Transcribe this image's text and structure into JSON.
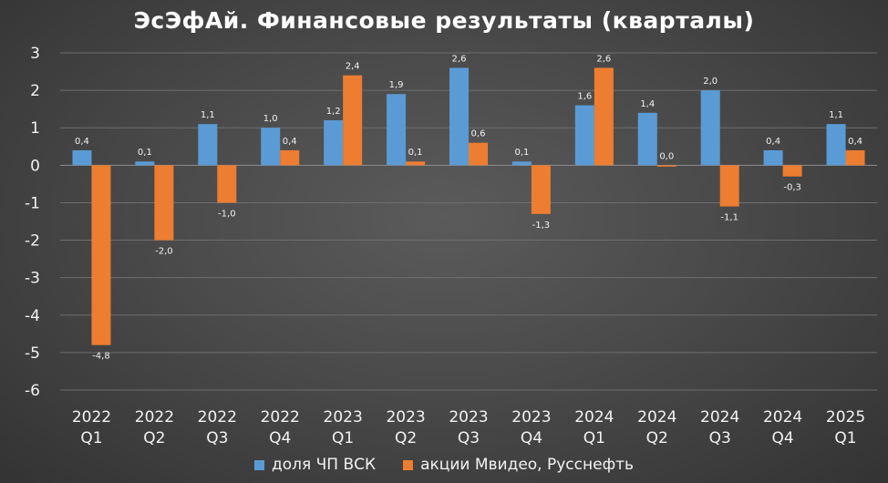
{
  "chart_data": {
    "type": "bar",
    "title": "ЭсЭфАй. Финансовые результаты (кварталы)",
    "xlabel": "",
    "ylabel": "",
    "ylim": [
      -6,
      3
    ],
    "yticks": [
      "3",
      "2",
      "1",
      "0",
      "-1",
      "-2",
      "-3",
      "-4",
      "-5",
      "-6"
    ],
    "ytick_values": [
      3,
      2,
      1,
      0,
      -1,
      -2,
      -3,
      -4,
      -5,
      -6
    ],
    "grid": true,
    "legend_position": "bottom",
    "categories": [
      [
        "2022",
        "Q1"
      ],
      [
        "2022",
        "Q2"
      ],
      [
        "2022",
        "Q3"
      ],
      [
        "2022",
        "Q4"
      ],
      [
        "2023",
        "Q1"
      ],
      [
        "2023",
        "Q2"
      ],
      [
        "2023",
        "Q3"
      ],
      [
        "2023",
        "Q4"
      ],
      [
        "2024",
        "Q1"
      ],
      [
        "2024",
        "Q2"
      ],
      [
        "2024",
        "Q3"
      ],
      [
        "2024",
        "Q4"
      ],
      [
        "2025",
        "Q1"
      ]
    ],
    "series": [
      {
        "name": "доля ЧП ВСК",
        "color": "#5b9bd5",
        "values": [
          0.4,
          0.1,
          1.1,
          1.0,
          1.2,
          1.9,
          2.6,
          0.1,
          1.6,
          1.4,
          2.0,
          0.4,
          1.1
        ],
        "labels": [
          "0,4",
          "0,1",
          "1,1",
          "1,0",
          "1,2",
          "1,9",
          "2,6",
          "0,1",
          "1,6",
          "1,4",
          "2,0",
          "0,4",
          "1,1"
        ]
      },
      {
        "name": "акции Мвидео, Русснефть",
        "color": "#ed7d31",
        "values": [
          -4.8,
          -2.0,
          -1.0,
          0.4,
          2.4,
          0.1,
          0.6,
          -1.3,
          2.6,
          0.0,
          -1.1,
          -0.3,
          0.4
        ],
        "labels": [
          "-4,8",
          "-2,0",
          "-1,0",
          "0,4",
          "2,4",
          "0,1",
          "0,6",
          "-1,3",
          "2,6",
          "0,0",
          "-1,1",
          "-0,3",
          "0,4"
        ]
      }
    ]
  }
}
